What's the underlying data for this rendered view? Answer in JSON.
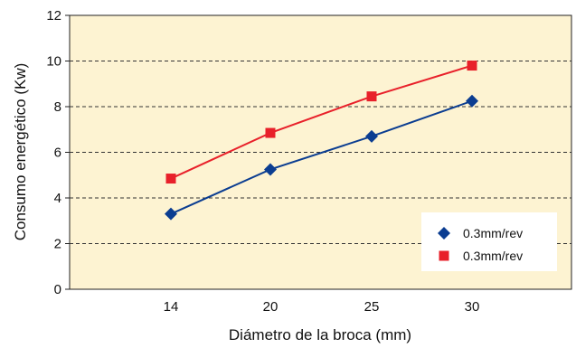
{
  "chart_data": {
    "type": "line",
    "x": [
      14,
      20,
      25,
      30
    ],
    "series": [
      {
        "name": "0.3mm/rev",
        "values": [
          3.3,
          5.25,
          6.7,
          8.25
        ],
        "color": "#0b3d91",
        "marker": "diamond"
      },
      {
        "name": "0.3mm/rev",
        "values": [
          4.85,
          6.85,
          8.45,
          9.8
        ],
        "color": "#e8202a",
        "marker": "square"
      }
    ],
    "title": "",
    "xlabel": "Diámetro de la broca (mm)",
    "ylabel": "Consumo energético (Kw)",
    "ylim": [
      0,
      12
    ],
    "yticks": [
      0,
      2,
      4,
      6,
      8,
      10,
      12
    ],
    "xtick_labels": [
      "14",
      "20",
      "25",
      "30"
    ],
    "grid": "horizontal dashed",
    "legend_position": "bottom-right",
    "plot_background": "#fdf3d2"
  }
}
